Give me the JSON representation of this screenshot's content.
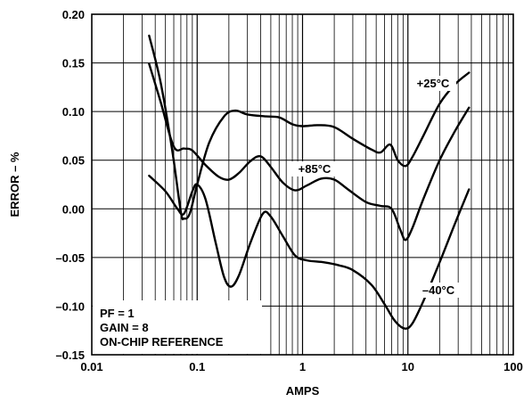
{
  "chart_data": {
    "type": "line",
    "title": "",
    "xlabel": "AMPS",
    "ylabel": "ERROR – %",
    "x_scale": "log",
    "xlim": [
      0.01,
      100
    ],
    "ylim": [
      -0.15,
      0.2
    ],
    "x_ticks": [
      {
        "value": 0.01,
        "label": "0.01"
      },
      {
        "value": 0.1,
        "label": "0.1"
      },
      {
        "value": 1,
        "label": "1"
      },
      {
        "value": 10,
        "label": "10"
      },
      {
        "value": 100,
        "label": "100"
      }
    ],
    "y_ticks": [
      {
        "value": 0.2,
        "label": "0.20"
      },
      {
        "value": 0.15,
        "label": "0.15"
      },
      {
        "value": 0.1,
        "label": "0.10"
      },
      {
        "value": 0.05,
        "label": "0.05"
      },
      {
        "value": 0.0,
        "label": "0.00"
      },
      {
        "value": -0.05,
        "label": "–0.05"
      },
      {
        "value": -0.1,
        "label": "–0.10"
      },
      {
        "value": -0.15,
        "label": "–0.15"
      }
    ],
    "grid": true,
    "series": [
      {
        "name": "+85°C",
        "color": "#000000",
        "points": [
          [
            0.035,
            0.149
          ],
          [
            0.045,
            0.11
          ],
          [
            0.06,
            0.064
          ],
          [
            0.075,
            0.062
          ],
          [
            0.09,
            0.06
          ],
          [
            0.12,
            0.045
          ],
          [
            0.16,
            0.033
          ],
          [
            0.2,
            0.03
          ],
          [
            0.25,
            0.037
          ],
          [
            0.32,
            0.049
          ],
          [
            0.4,
            0.054
          ],
          [
            0.5,
            0.043
          ],
          [
            0.65,
            0.027
          ],
          [
            0.85,
            0.019
          ],
          [
            1.1,
            0.024
          ],
          [
            1.5,
            0.031
          ],
          [
            2.0,
            0.03
          ],
          [
            2.7,
            0.02
          ],
          [
            4.0,
            0.007
          ],
          [
            5.5,
            0.003
          ],
          [
            7.0,
            0.0
          ],
          [
            8.5,
            -0.022
          ],
          [
            9.5,
            -0.032
          ],
          [
            11,
            -0.02
          ],
          [
            14,
            0.01
          ],
          [
            20,
            0.05
          ],
          [
            28,
            0.08
          ],
          [
            38,
            0.104
          ]
        ]
      },
      {
        "name": "+25°C",
        "color": "#000000",
        "points": [
          [
            0.035,
            0.178
          ],
          [
            0.045,
            0.13
          ],
          [
            0.058,
            0.06
          ],
          [
            0.07,
            -0.003
          ],
          [
            0.075,
            -0.01
          ],
          [
            0.085,
            -0.005
          ],
          [
            0.1,
            0.025
          ],
          [
            0.13,
            0.068
          ],
          [
            0.18,
            0.095
          ],
          [
            0.23,
            0.101
          ],
          [
            0.3,
            0.097
          ],
          [
            0.45,
            0.095
          ],
          [
            0.6,
            0.094
          ],
          [
            0.8,
            0.087
          ],
          [
            1.0,
            0.085
          ],
          [
            1.4,
            0.086
          ],
          [
            2.0,
            0.084
          ],
          [
            3.0,
            0.072
          ],
          [
            4.5,
            0.061
          ],
          [
            5.5,
            0.058
          ],
          [
            6.8,
            0.066
          ],
          [
            8.0,
            0.05
          ],
          [
            9.5,
            0.044
          ],
          [
            11,
            0.053
          ],
          [
            14,
            0.075
          ],
          [
            20,
            0.108
          ],
          [
            28,
            0.128
          ],
          [
            38,
            0.14
          ]
        ]
      },
      {
        "name": "–40°C",
        "color": "#000000",
        "points": [
          [
            0.035,
            0.034
          ],
          [
            0.05,
            0.018
          ],
          [
            0.065,
            0.0
          ],
          [
            0.075,
            -0.005
          ],
          [
            0.09,
            0.018
          ],
          [
            0.1,
            0.025
          ],
          [
            0.12,
            0.01
          ],
          [
            0.15,
            -0.035
          ],
          [
            0.18,
            -0.07
          ],
          [
            0.21,
            -0.08
          ],
          [
            0.25,
            -0.068
          ],
          [
            0.32,
            -0.035
          ],
          [
            0.42,
            -0.005
          ],
          [
            0.5,
            -0.008
          ],
          [
            0.65,
            -0.028
          ],
          [
            0.85,
            -0.048
          ],
          [
            1.1,
            -0.053
          ],
          [
            1.6,
            -0.055
          ],
          [
            2.2,
            -0.058
          ],
          [
            3.0,
            -0.063
          ],
          [
            4.5,
            -0.078
          ],
          [
            6.0,
            -0.098
          ],
          [
            7.5,
            -0.115
          ],
          [
            9.3,
            -0.123
          ],
          [
            11,
            -0.118
          ],
          [
            14,
            -0.095
          ],
          [
            20,
            -0.055
          ],
          [
            28,
            -0.015
          ],
          [
            38,
            0.02
          ]
        ]
      }
    ],
    "annotations": [
      "PF = 1",
      "GAIN = 8",
      "ON-CHIP REFERENCE"
    ]
  }
}
